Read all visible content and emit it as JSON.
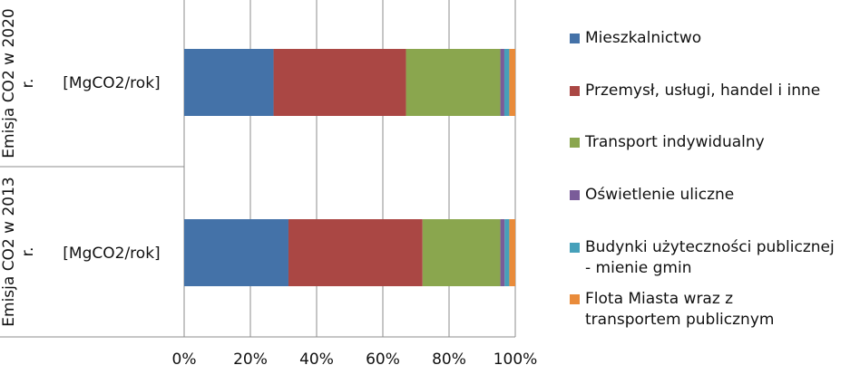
{
  "chart_data": {
    "type": "bar",
    "orientation": "horizontal",
    "stacked": "percent",
    "categories": [
      {
        "name": "Emisja CO2 w 2020 r.",
        "unit": "[MgCO2/rok]"
      },
      {
        "name": "Emisja CO2 w 2013 r.",
        "unit": "[MgCO2/rok]"
      }
    ],
    "series": [
      {
        "name": "Mieszkalnictwo",
        "color": "#4472A8",
        "values": [
          27.0,
          31.5
        ]
      },
      {
        "name": "Przemysł, usługi, handel i inne",
        "color": "#AA4744",
        "values": [
          40.0,
          40.5
        ]
      },
      {
        "name": "Transport indywidualny",
        "color": "#8AA64E",
        "values": [
          28.5,
          23.5
        ]
      },
      {
        "name": "Oświetlenie uliczne",
        "color": "#7A5C99",
        "values": [
          1.2,
          1.3
        ]
      },
      {
        "name": "Budynki użyteczności publicznej - mienie gmin",
        "color": "#46A0BA",
        "values": [
          1.5,
          1.4
        ]
      },
      {
        "name": "Flota Miasta wraz z transportem publicznym",
        "color": "#E98B3A",
        "values": [
          1.8,
          1.8
        ]
      }
    ],
    "xlim": [
      0,
      100
    ],
    "x_ticks": [
      "0%",
      "20%",
      "40%",
      "60%",
      "80%",
      "100%"
    ],
    "grid": "vertical",
    "legend_position": "right"
  },
  "legend_display": [
    "Mieszkalnictwo",
    "Przemysł, usługi, handel i inne",
    "Transport indywidualny",
    "Oświetlenie uliczne",
    "Budynki użyteczności publicznej\n- mienie gmin",
    "Flota Miasta wraz z\ntransportem publicznym"
  ]
}
